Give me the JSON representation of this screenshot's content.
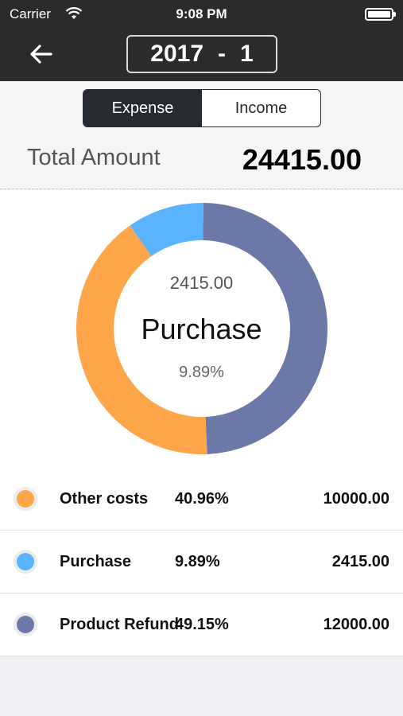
{
  "status_bar": {
    "carrier": "Carrier",
    "time": "9:08 PM"
  },
  "nav": {
    "year": "2017",
    "separator": "-",
    "month": "1"
  },
  "segmented": {
    "expense": "Expense",
    "income": "Income",
    "selected": "Expense"
  },
  "total": {
    "label": "Total Amount",
    "value": "24415.00"
  },
  "chart_center": {
    "amount": "2415.00",
    "name": "Purchase",
    "percent": "9.89%"
  },
  "colors": {
    "other_costs": "#ffa54a",
    "purchase": "#5ab3ff",
    "product_refund": "#6c78a8",
    "dark_bar": "#2b2b2b"
  },
  "chart_data": {
    "type": "pie",
    "categories": [
      "Other costs",
      "Purchase",
      "Product Refund"
    ],
    "values": [
      10000.0,
      2415.0,
      12000.0
    ],
    "percentages": [
      40.96,
      9.89,
      49.15
    ],
    "colors": [
      "#ffa54a",
      "#5ab3ff",
      "#6c78a8"
    ],
    "style": "donut"
  },
  "legend": [
    {
      "name": "Other costs",
      "percent": "40.96%",
      "amount": "10000.00",
      "color": "#ffa54a"
    },
    {
      "name": "Purchase",
      "percent": "9.89%",
      "amount": "2415.00",
      "color": "#5ab3ff"
    },
    {
      "name": "Product Refund",
      "percent": "49.15%",
      "amount": "12000.00",
      "color": "#6c78a8"
    }
  ]
}
